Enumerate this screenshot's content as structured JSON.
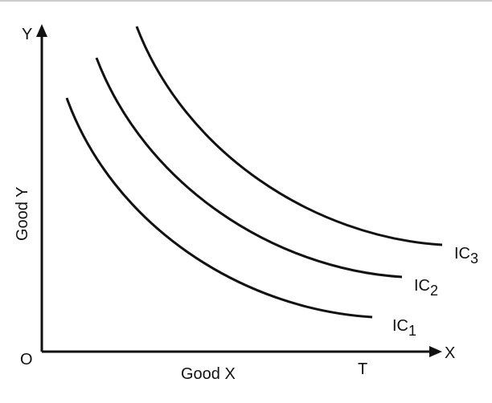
{
  "axes": {
    "y_letter": "Y",
    "x_letter": "X",
    "origin": "O",
    "y_label": "Good Y",
    "x_label": "Good X",
    "x_mark": "T"
  },
  "curves": [
    {
      "label": "IC",
      "sub": "1"
    },
    {
      "label": "IC",
      "sub": "2"
    },
    {
      "label": "IC",
      "sub": "3"
    }
  ]
}
